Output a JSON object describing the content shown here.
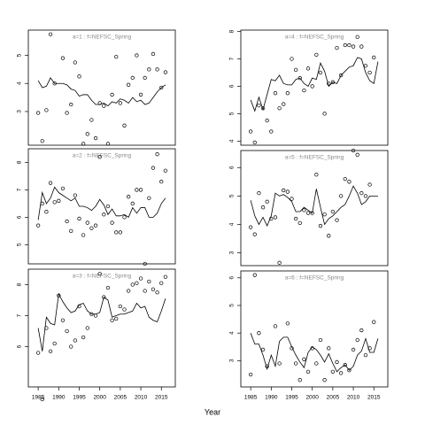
{
  "xlabel": "Year",
  "chart_data": [
    {
      "type": "scatter",
      "title": "a=1 : f=NEFSC_Spring",
      "x": [
        1985,
        1986,
        1987,
        1988,
        1989,
        1990,
        1991,
        1992,
        1993,
        1994,
        1995,
        1996,
        1997,
        1998,
        1999,
        2000,
        2001,
        2002,
        2003,
        2004,
        2005,
        2006,
        2007,
        2008,
        2009,
        2010,
        2011,
        2012,
        2013,
        2014,
        2015,
        2016
      ],
      "values": [
        2.95,
        1.95,
        3.05,
        5.75,
        4.0,
        null,
        4.9,
        2.95,
        3.25,
        4.75,
        4.25,
        1.85,
        2.2,
        2.7,
        2.05,
        3.3,
        3.2,
        1.85,
        3.6,
        4.95,
        3.3,
        2.5,
        3.95,
        4.2,
        5.0,
        3.6,
        4.2,
        4.5,
        5.05,
        4.5,
        3.85,
        4.4
      ],
      "line_values": [
        4.1,
        3.85,
        3.9,
        4.2,
        4.0,
        4.0,
        4.0,
        3.95,
        3.8,
        3.75,
        3.55,
        3.6,
        3.6,
        3.4,
        3.25,
        3.25,
        3.3,
        3.2,
        3.35,
        3.3,
        3.45,
        3.4,
        3.3,
        3.5,
        3.35,
        3.4,
        3.25,
        3.3,
        3.5,
        3.7,
        3.85,
        3.95
      ],
      "xlim": [
        1982.6,
        2018.4
      ],
      "ylim": [
        1.8,
        5.9
      ],
      "yticks": [
        3,
        4,
        5
      ]
    },
    {
      "type": "scatter",
      "title": "a=2 : f=NEFSC_Spring",
      "x": [
        1985,
        1986,
        1987,
        1988,
        1989,
        1990,
        1991,
        1992,
        1993,
        1994,
        1995,
        1996,
        1997,
        1998,
        1999,
        2000,
        2001,
        2002,
        2003,
        2004,
        2005,
        2006,
        2007,
        2008,
        2009,
        2010,
        2011,
        2012,
        2013,
        2014,
        2015,
        2016
      ],
      "values": [
        5.7,
        6.5,
        6.2,
        7.25,
        6.55,
        6.6,
        7.05,
        5.85,
        5.5,
        6.8,
        5.95,
        5.35,
        5.8,
        5.6,
        5.7,
        8.2,
        6.1,
        6.4,
        5.8,
        5.45,
        5.45,
        6.0,
        6.75,
        6.5,
        7.0,
        7.0,
        4.3,
        6.7,
        7.8,
        8.3,
        7.3,
        7.7
      ],
      "line_values": [
        5.9,
        6.9,
        6.5,
        6.7,
        7.1,
        6.9,
        6.8,
        6.7,
        6.6,
        6.7,
        6.4,
        6.4,
        6.35,
        6.25,
        6.4,
        6.65,
        6.45,
        6.1,
        6.3,
        6.05,
        6.05,
        6.1,
        6.0,
        6.35,
        6.15,
        6.35,
        6.35,
        6.0,
        6.0,
        6.15,
        6.5,
        6.7
      ],
      "xlim": [
        1982.6,
        2018.4
      ],
      "ylim": [
        4.3,
        8.5
      ],
      "yticks": [
        5,
        6,
        7,
        8
      ]
    },
    {
      "type": "scatter",
      "title": "a=3 : f=NEFSC_Spring",
      "x": [
        1985,
        1986,
        1987,
        1988,
        1989,
        1990,
        1991,
        1992,
        1993,
        1994,
        1995,
        1996,
        1997,
        1998,
        1999,
        2000,
        2001,
        2002,
        2003,
        2004,
        2005,
        2006,
        2007,
        2008,
        2009,
        2010,
        2011,
        2012,
        2013,
        2014,
        2015,
        2016
      ],
      "values": [
        5.8,
        4.3,
        6.6,
        5.85,
        6.1,
        7.65,
        6.85,
        6.5,
        6.0,
        6.2,
        7.3,
        6.3,
        6.6,
        7.05,
        7.0,
        8.35,
        7.6,
        7.9,
        6.85,
        6.9,
        7.3,
        7.2,
        7.8,
        8.0,
        8.05,
        8.2,
        7.8,
        8.1,
        7.85,
        7.75,
        8.05,
        8.25
      ],
      "line_values": [
        6.6,
        5.85,
        6.95,
        6.75,
        6.7,
        7.7,
        7.45,
        7.25,
        7.1,
        7.15,
        7.35,
        7.4,
        7.15,
        7.05,
        7.05,
        7.1,
        7.6,
        7.5,
        6.95,
        7.0,
        7.05,
        7.05,
        7.1,
        7.15,
        7.4,
        7.25,
        7.3,
        6.95,
        6.85,
        6.8,
        7.15,
        7.55
      ],
      "xlim": [
        1982.6,
        2018.4
      ],
      "ylim": [
        4.7,
        8.5
      ],
      "yticks": [
        6,
        7,
        8
      ],
      "xticks": [
        1985,
        1990,
        1995,
        2000,
        2005,
        2010,
        2015
      ]
    },
    {
      "type": "scatter",
      "title": "a=4 : f=NEFSC_Spring",
      "x": [
        1985,
        1986,
        1987,
        1988,
        1989,
        1990,
        1991,
        1992,
        1993,
        1994,
        1995,
        1996,
        1997,
        1998,
        1999,
        2000,
        2001,
        2002,
        2003,
        2004,
        2005,
        2006,
        2007,
        2008,
        2009,
        2010,
        2011,
        2012,
        2013,
        2014,
        2015,
        2016
      ],
      "values": [
        4.35,
        3.95,
        5.3,
        5.2,
        4.75,
        4.35,
        5.75,
        5.2,
        5.35,
        5.75,
        7.0,
        6.6,
        6.3,
        5.85,
        6.65,
        6.0,
        7.15,
        6.5,
        5.0,
        6.1,
        6.15,
        7.4,
        6.4,
        7.5,
        7.5,
        7.45,
        7.8,
        7.45,
        6.75,
        6.5,
        7.05,
        null
      ],
      "line_values": [
        5.5,
        5.1,
        5.6,
        5.15,
        5.7,
        6.25,
        6.2,
        6.4,
        6.1,
        6.05,
        6.05,
        6.25,
        6.3,
        6.1,
        6.0,
        6.3,
        6.25,
        6.85,
        6.55,
        6.0,
        6.15,
        6.1,
        6.4,
        6.55,
        6.7,
        6.75,
        7.05,
        7.0,
        6.5,
        6.2,
        6.1,
        6.9
      ],
      "xlim": [
        1982.6,
        2018.4
      ],
      "ylim": [
        3.85,
        8.05
      ],
      "yticks": [
        4,
        5,
        6,
        7,
        8
      ]
    },
    {
      "type": "scatter",
      "title": "a=5 : f=NEFSC_Spring",
      "x": [
        1985,
        1986,
        1987,
        1988,
        1989,
        1990,
        1991,
        1992,
        1993,
        1994,
        1995,
        1996,
        1997,
        1998,
        1999,
        2000,
        2001,
        2002,
        2003,
        2004,
        2005,
        2006,
        2007,
        2008,
        2009,
        2010,
        2011,
        2012,
        2013,
        2014,
        2015,
        2016
      ],
      "values": [
        3.9,
        3.65,
        5.1,
        4.6,
        4.8,
        4.2,
        4.25,
        2.65,
        5.2,
        5.15,
        4.9,
        4.2,
        4.05,
        4.5,
        4.4,
        4.4,
        5.75,
        3.95,
        4.35,
        3.6,
        4.45,
        4.15,
        5.0,
        5.6,
        5.5,
        6.6,
        6.45,
        5.1,
        5.0,
        5.4,
        null,
        null
      ],
      "line_values": [
        4.85,
        4.3,
        4.0,
        4.25,
        3.95,
        4.3,
        5.1,
        5.0,
        5.05,
        4.95,
        4.8,
        4.45,
        4.45,
        4.6,
        4.5,
        4.4,
        5.25,
        4.6,
        4.0,
        4.2,
        4.3,
        4.45,
        4.6,
        4.7,
        5.0,
        5.35,
        5.1,
        4.7,
        4.8,
        5.0,
        5.0,
        5.0
      ],
      "xlim": [
        1982.6,
        2018.4
      ],
      "ylim": [
        2.55,
        6.6
      ],
      "yticks": [
        3,
        4,
        5,
        6
      ]
    },
    {
      "type": "scatter",
      "title": "a=6 : f=NEFSC_Spring",
      "x": [
        1985,
        1986,
        1987,
        1988,
        1989,
        1990,
        1991,
        1992,
        1993,
        1994,
        1995,
        1996,
        1997,
        1998,
        1999,
        2000,
        2001,
        2002,
        2003,
        2004,
        2005,
        2006,
        2007,
        2008,
        2009,
        2010,
        2011,
        2012,
        2013,
        2014,
        2015,
        2016
      ],
      "values": [
        2.5,
        6.1,
        4.0,
        3.4,
        2.8,
        null,
        4.25,
        2.9,
        null,
        4.35,
        3.45,
        2.9,
        2.3,
        3.05,
        2.6,
        3.45,
        2.9,
        3.75,
        2.3,
        3.45,
        2.6,
        2.95,
        2.55,
        2.85,
        2.65,
        3.4,
        3.75,
        4.1,
        3.2,
        3.45,
        4.4,
        null
      ],
      "line_values": [
        4.0,
        3.6,
        3.6,
        3.2,
        2.7,
        3.2,
        2.8,
        3.7,
        3.85,
        3.85,
        3.5,
        3.2,
        2.95,
        2.75,
        3.3,
        3.5,
        3.4,
        3.2,
        2.95,
        3.25,
        2.9,
        2.6,
        2.75,
        2.85,
        2.65,
        2.8,
        3.2,
        3.35,
        3.8,
        3.3,
        3.3,
        3.8
      ],
      "xlim": [
        1982.6,
        2018.4
      ],
      "ylim": [
        2.05,
        6.25
      ],
      "yticks": [
        3,
        4,
        5,
        6
      ],
      "xticks": [
        1985,
        1990,
        1995,
        2000,
        2005,
        2010,
        2015
      ]
    }
  ]
}
